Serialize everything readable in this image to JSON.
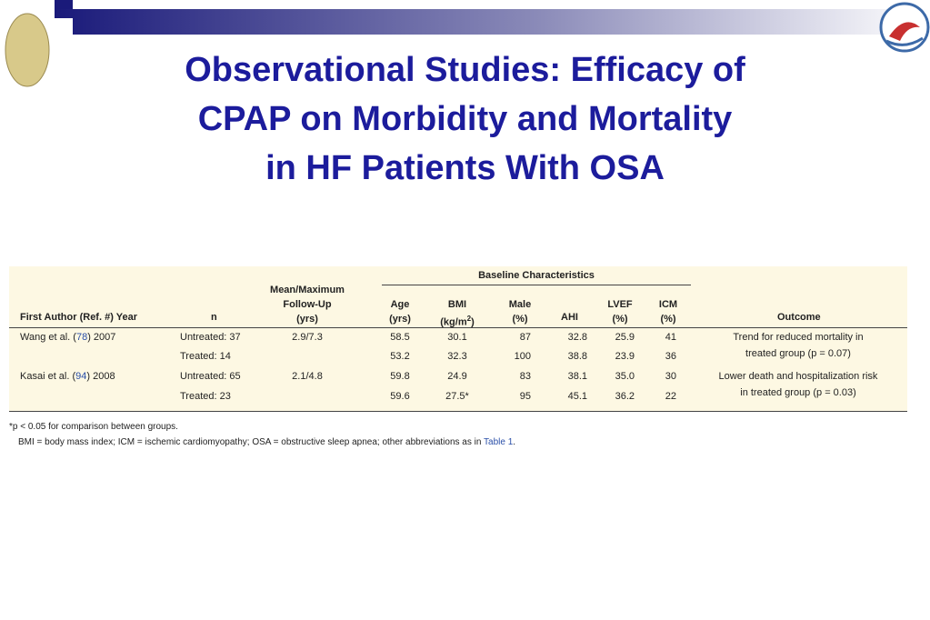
{
  "title": {
    "lines": [
      "Observational Studies: Efficacy of",
      "CPAP on Morbidity and Mortality",
      "in HF Patients With OSA"
    ]
  },
  "table": {
    "header": {
      "author": "First Author (Ref. #) Year",
      "n": "n",
      "followup": [
        "Mean/Maximum",
        "Follow-Up",
        "(yrs)"
      ],
      "group": "Baseline Characteristics",
      "age": [
        "Age",
        "(yrs)"
      ],
      "bmi": [
        "BMI",
        "(kg/m",
        "2",
        ")"
      ],
      "male": [
        "Male",
        "(%)"
      ],
      "ahi": "AHI",
      "lvef": [
        "LVEF",
        "(%)"
      ],
      "icm": [
        "ICM",
        "(%)"
      ],
      "outcome": "Outcome"
    },
    "rows": [
      {
        "author_pre": "Wang et al. (",
        "ref": "78",
        "author_post": ") 2007",
        "n": "Untreated: 37",
        "followup": "2.9/7.3",
        "age": "58.5",
        "bmi": "30.1",
        "male": "87",
        "ahi": "32.8",
        "lvef": "25.9",
        "icm": "41",
        "outcome": [
          "Trend for reduced mortality in",
          "treated group (p = 0.07)"
        ]
      },
      {
        "n": "Treated: 14",
        "age": "53.2",
        "bmi": "32.3",
        "male": "100",
        "ahi": "38.8",
        "lvef": "23.9",
        "icm": "36"
      },
      {
        "author_pre": "Kasai et al. (",
        "ref": "94",
        "author_post": ") 2008",
        "n": "Untreated: 65",
        "followup": "2.1/4.8",
        "age": "59.8",
        "bmi": "24.9",
        "male": "83",
        "ahi": "38.1",
        "lvef": "35.0",
        "icm": "30",
        "outcome": [
          "Lower death and hospitalization risk",
          "in treated group (p = 0.03)"
        ]
      },
      {
        "n": "Treated: 23",
        "age": "59.6",
        "bmi": "27.5*",
        "male": "95",
        "ahi": "45.1",
        "lvef": "36.2",
        "icm": "22"
      }
    ]
  },
  "footnotes": {
    "star": "*p < 0.05 for comparison between groups.",
    "abbr_pre": "BMI = body mass index; ICM = ischemic cardiomyopathy; OSA = obstructive sleep apnea; other abbreviations as in ",
    "abbr_link": "Table 1",
    "abbr_post": "."
  }
}
